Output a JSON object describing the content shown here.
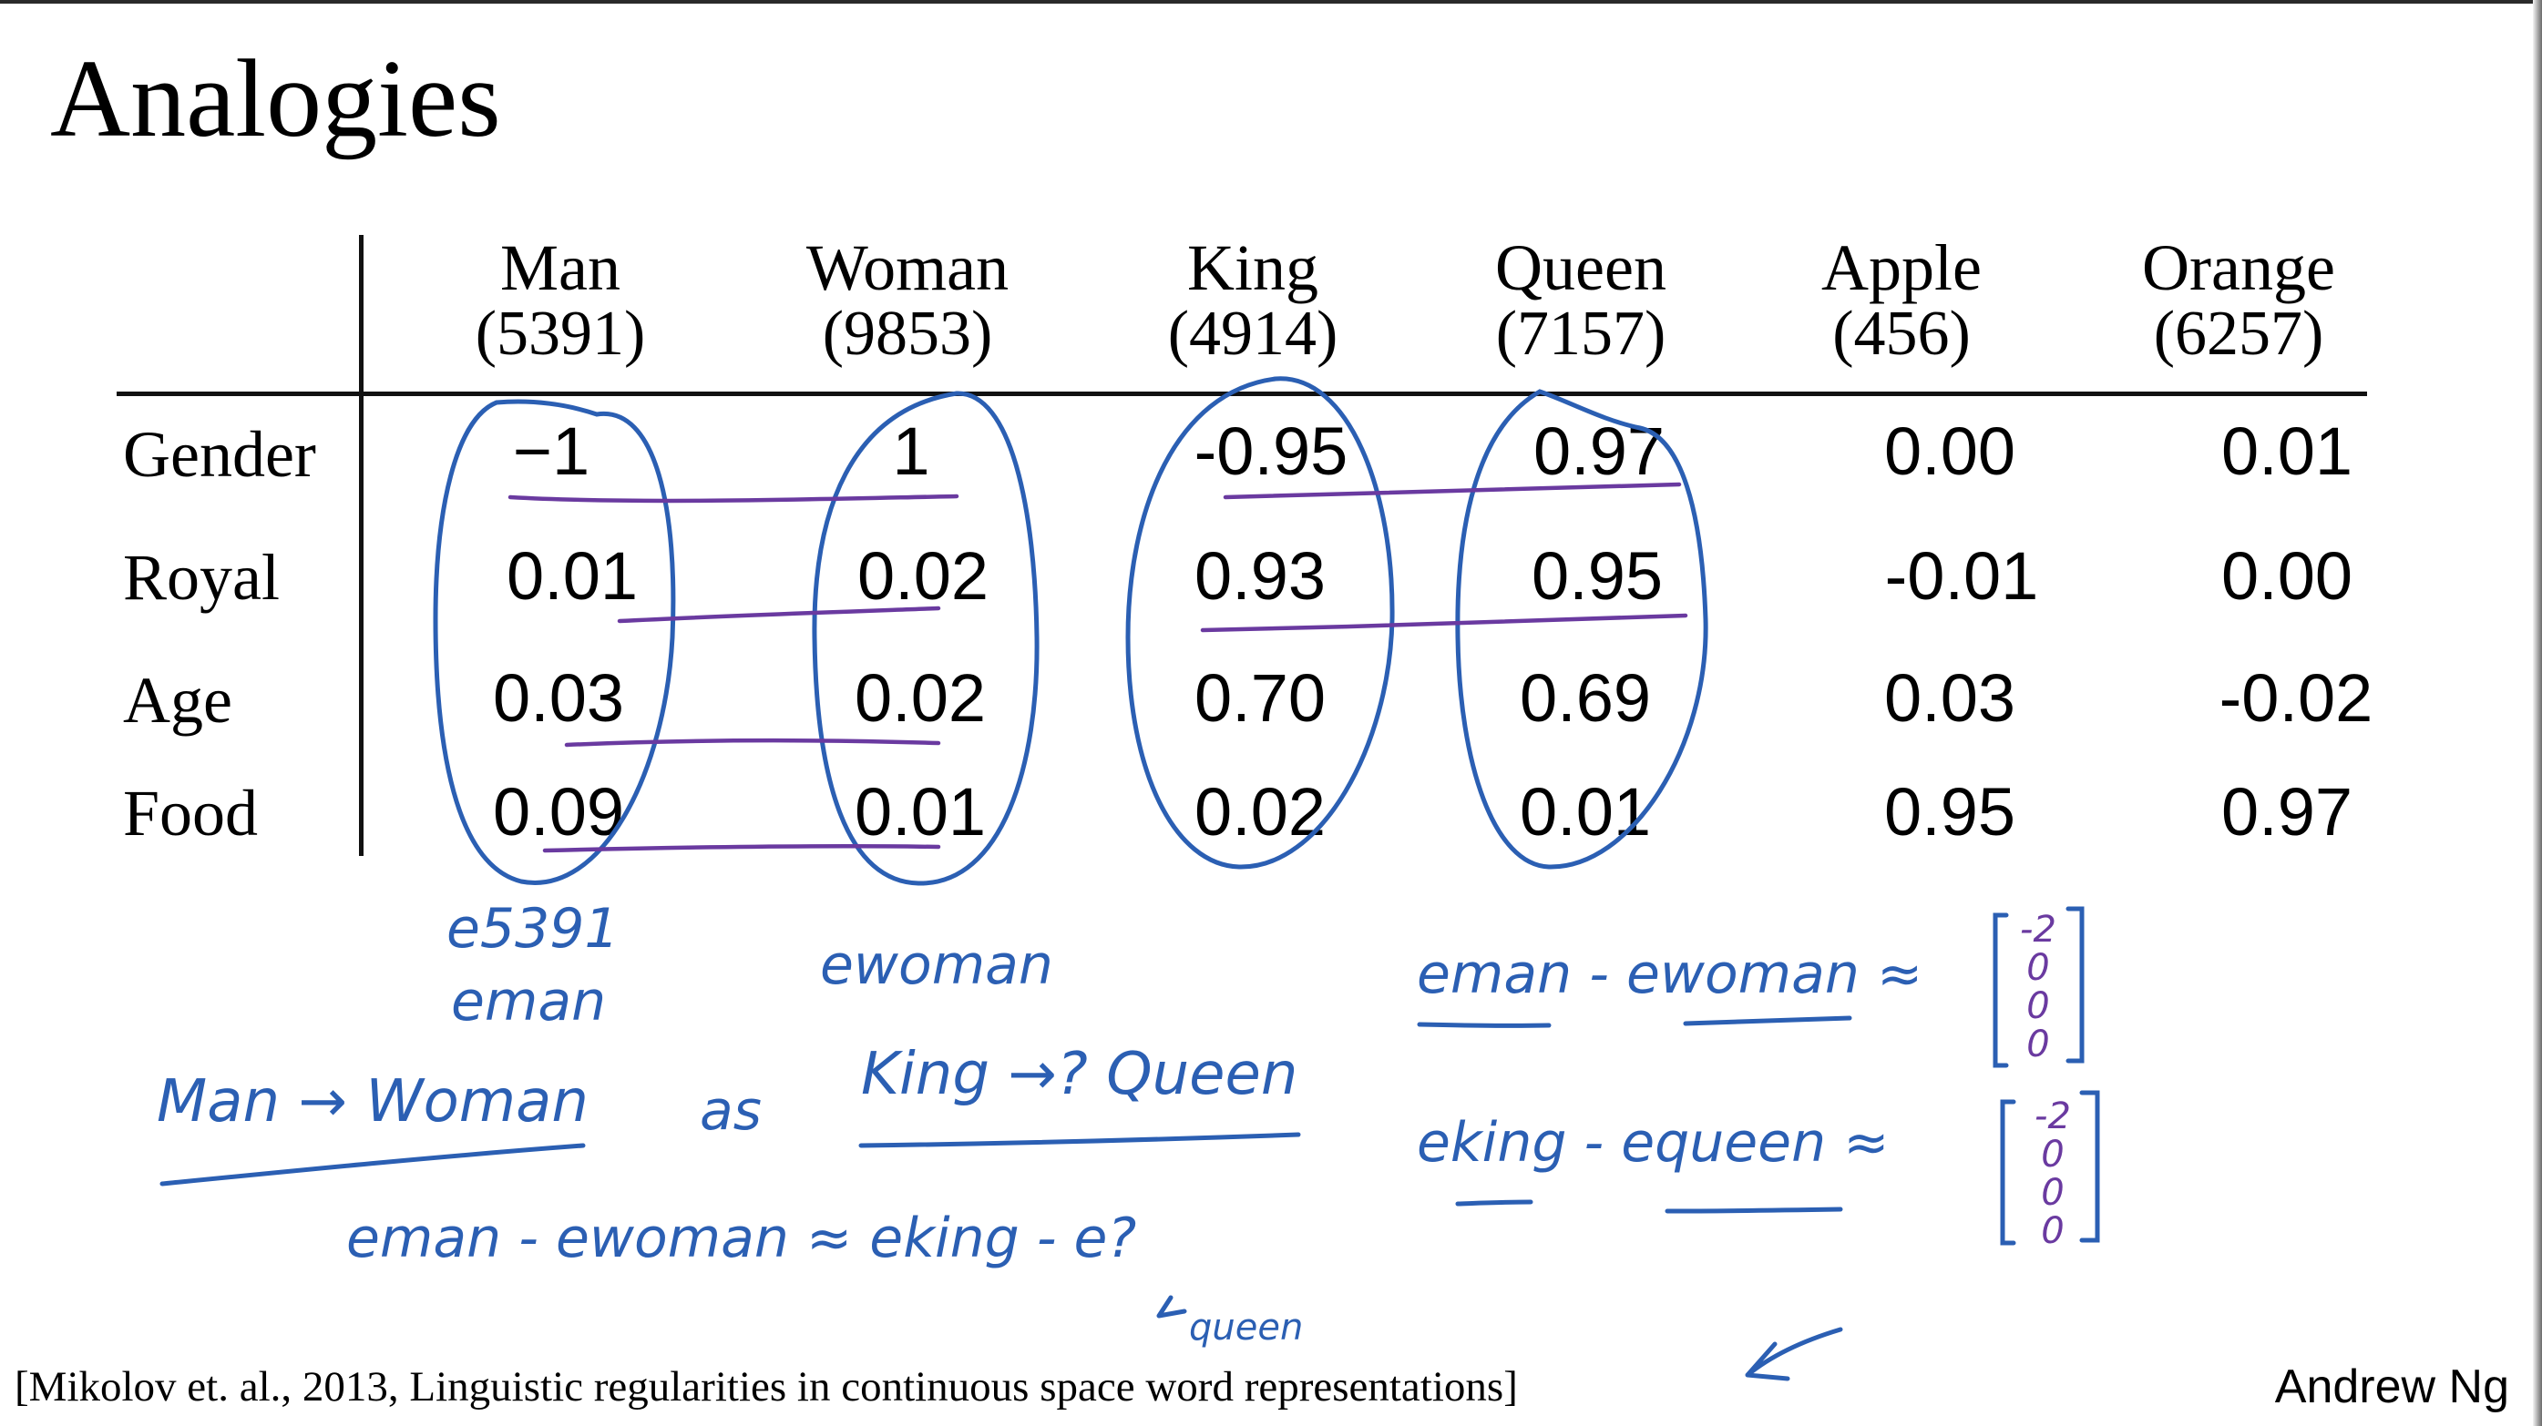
{
  "title": "Analogies",
  "columns": [
    {
      "word": "Man",
      "index": "(5391)"
    },
    {
      "word": "Woman",
      "index": "(9853)"
    },
    {
      "word": "King",
      "index": "(4914)"
    },
    {
      "word": "Queen",
      "index": "(7157)"
    },
    {
      "word": "Apple",
      "index": "(456)"
    },
    {
      "word": "Orange",
      "index": "(6257)"
    }
  ],
  "rows": [
    {
      "label": "Gender",
      "values": [
        "−1",
        "1",
        "-0.95",
        "0.97",
        "0.00",
        "0.01"
      ]
    },
    {
      "label": "Royal",
      "values": [
        "0.01",
        "0.02",
        "0.93",
        "0.95",
        "-0.01",
        "0.00"
      ]
    },
    {
      "label": "Age",
      "values": [
        "0.03",
        "0.02",
        "0.70",
        "0.69",
        "0.03",
        "-0.02"
      ]
    },
    {
      "label": "Food",
      "values": [
        "0.09",
        "0.01",
        "0.02",
        "0.01",
        "0.95",
        "0.97"
      ]
    }
  ],
  "handwriting": {
    "e5391": "e5391",
    "eman": "eman",
    "ewoman": "ewoman",
    "analogy_left": "Man → Woman",
    "as_symbol": "as",
    "analogy_right": "King →? Queen",
    "equation": "eman - ewoman ≈ eking - e?",
    "queen_note": "queen",
    "diff1": "eman - ewoman ≈",
    "diff2": "eking - equeen ≈",
    "vec1": [
      "-2",
      "0",
      "0",
      "0"
    ],
    "vec2": [
      "-2",
      "0",
      "0",
      "0"
    ]
  },
  "citation": "[Mikolov et. al., 2013, Linguistic regularities in continuous space word representations]",
  "author": "Andrew Ng",
  "colors": {
    "ink_blue": "#2b5fb3",
    "ink_purple": "#6a3aa0",
    "text": "#000000"
  }
}
